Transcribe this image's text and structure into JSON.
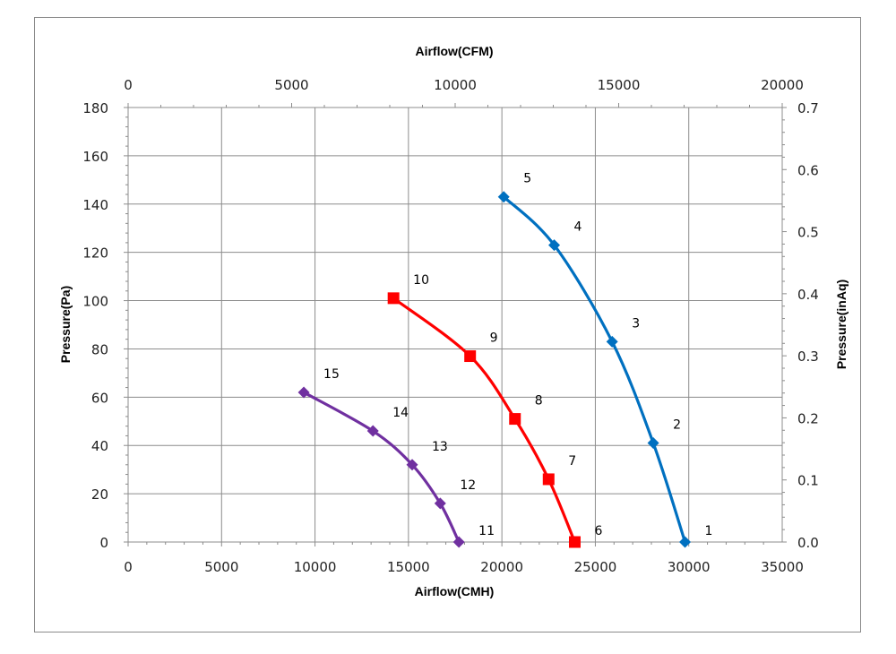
{
  "chart_data": {
    "type": "line",
    "title": "",
    "axes": {
      "x_bottom": {
        "label": "Airflow(CMH)",
        "min": 0,
        "max": 35000,
        "ticks": [
          0,
          5000,
          10000,
          15000,
          20000,
          25000,
          30000,
          35000
        ]
      },
      "x_top": {
        "label": "Airflow(CFM)",
        "min": 0,
        "max": 20000,
        "ticks": [
          0,
          5000,
          10000,
          15000,
          20000
        ]
      },
      "y_left": {
        "label": "Pressure(Pa)",
        "min": 0,
        "max": 180,
        "ticks": [
          0,
          20,
          40,
          60,
          80,
          100,
          120,
          140,
          160,
          180
        ]
      },
      "y_right": {
        "label": "Pressure(inAq)",
        "min": 0,
        "max": 0.7,
        "ticks": [
          "0.0",
          "0.1",
          "0.2",
          "0.3",
          "0.4",
          "0.5",
          "0.6",
          "0.7"
        ]
      }
    },
    "grid": true,
    "series": [
      {
        "color": "#0070c0",
        "marker": "diamond",
        "points": [
          {
            "label": "1",
            "x": 29800,
            "y": 0
          },
          {
            "label": "2",
            "x": 28100,
            "y": 41
          },
          {
            "label": "3",
            "x": 25900,
            "y": 83
          },
          {
            "label": "4",
            "x": 22800,
            "y": 123
          },
          {
            "label": "5",
            "x": 20100,
            "y": 143
          }
        ]
      },
      {
        "color": "#ff0000",
        "marker": "square",
        "points": [
          {
            "label": "6",
            "x": 23900,
            "y": 0
          },
          {
            "label": "7",
            "x": 22500,
            "y": 26
          },
          {
            "label": "8",
            "x": 20700,
            "y": 51
          },
          {
            "label": "9",
            "x": 18300,
            "y": 77
          },
          {
            "label": "10",
            "x": 14200,
            "y": 101
          }
        ]
      },
      {
        "color": "#7030a0",
        "marker": "diamond",
        "points": [
          {
            "label": "11",
            "x": 17700,
            "y": 0
          },
          {
            "label": "12",
            "x": 16700,
            "y": 16
          },
          {
            "label": "13",
            "x": 15200,
            "y": 32
          },
          {
            "label": "14",
            "x": 13100,
            "y": 46
          },
          {
            "label": "15",
            "x": 9400,
            "y": 62
          }
        ]
      }
    ]
  }
}
